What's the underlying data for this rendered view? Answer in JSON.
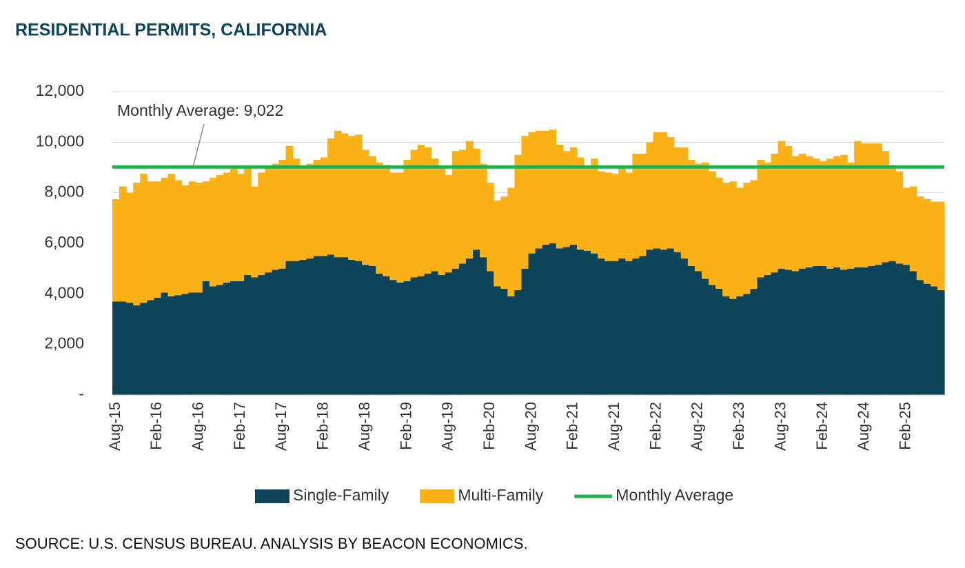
{
  "chart_data": {
    "type": "stacked_bar",
    "title": "RESIDENTIAL PERMITS, CALIFORNIA",
    "source": "SOURCE: U.S. CENSUS BUREAU. ANALYSIS BY BEACON ECONOMICS.",
    "annotation": "Monthly Average:  9,022",
    "categories": [
      "Aug-15",
      null,
      null,
      null,
      null,
      null,
      "Feb-16",
      null,
      null,
      null,
      null,
      null,
      "Aug-16",
      null,
      null,
      null,
      null,
      null,
      "Feb-17",
      null,
      null,
      null,
      null,
      null,
      "Aug-17",
      null,
      null,
      null,
      null,
      null,
      "Feb-18",
      null,
      null,
      null,
      null,
      null,
      "Aug-18",
      null,
      null,
      null,
      null,
      null,
      "Feb-19",
      null,
      null,
      null,
      null,
      null,
      "Aug-19",
      null,
      null,
      null,
      null,
      null,
      "Feb-20",
      null,
      null,
      null,
      null,
      null,
      "Aug-20",
      null,
      null,
      null,
      null,
      null,
      "Feb-21",
      null,
      null,
      null,
      null,
      null,
      "Aug-21",
      null,
      null,
      null,
      null,
      null,
      "Feb-22",
      null,
      null,
      null,
      null,
      null,
      "Aug-22",
      null,
      null,
      null,
      null,
      null,
      "Feb-23",
      null,
      null,
      null,
      null,
      null,
      "Aug-23",
      null,
      null,
      null,
      null,
      null,
      "Feb-24",
      null,
      null,
      null,
      null,
      null,
      "Aug-24",
      null,
      null,
      null,
      null,
      null,
      "Feb-25",
      null,
      null,
      null,
      null,
      null
    ],
    "series": [
      {
        "name": "Single-Family",
        "color": "#0d4459",
        "values": [
          3700,
          3700,
          3650,
          3550,
          3650,
          3750,
          3850,
          4050,
          3900,
          3950,
          4000,
          4050,
          4050,
          4500,
          4300,
          4350,
          4450,
          4500,
          4500,
          4750,
          4650,
          4750,
          4850,
          4950,
          5000,
          5300,
          5300,
          5350,
          5400,
          5500,
          5500,
          5550,
          5450,
          5450,
          5350,
          5300,
          5150,
          5100,
          4800,
          4700,
          4550,
          4450,
          4500,
          4650,
          4700,
          4800,
          4900,
          4750,
          4850,
          5000,
          5200,
          5400,
          5750,
          5450,
          4900,
          4300,
          4200,
          3900,
          4150,
          5000,
          5600,
          5800,
          5950,
          6000,
          5800,
          5850,
          5950,
          5750,
          5700,
          5600,
          5400,
          5300,
          5300,
          5400,
          5300,
          5400,
          5500,
          5750,
          5800,
          5750,
          5800,
          5650,
          5400,
          5100,
          4900,
          4600,
          4350,
          4200,
          3900,
          3800,
          3900,
          4000,
          4200,
          4650,
          4750,
          4850,
          5000,
          4950,
          4900,
          5000,
          5050,
          5100,
          5100,
          5000,
          5050,
          4950,
          5000,
          5050,
          5050,
          5100,
          5150,
          5250,
          5300,
          5200,
          5150,
          4900,
          4550,
          4400,
          4300,
          4150
        ]
      },
      {
        "name": "Multi-Family",
        "color": "#fbb217",
        "values": [
          4050,
          4550,
          4350,
          4850,
          5100,
          4700,
          4600,
          4550,
          4850,
          4550,
          4300,
          4400,
          4350,
          3950,
          4300,
          4350,
          4350,
          4500,
          4250,
          4250,
          3600,
          4050,
          4150,
          4200,
          4300,
          4550,
          4050,
          3700,
          3750,
          3800,
          3900,
          4600,
          5000,
          4900,
          4900,
          5000,
          4550,
          4350,
          4400,
          4400,
          4250,
          4350,
          4800,
          5050,
          5200,
          5000,
          4450,
          4300,
          3850,
          4650,
          4500,
          4650,
          4000,
          3700,
          3500,
          3400,
          3650,
          4300,
          5350,
          5250,
          4800,
          4650,
          4500,
          4500,
          4100,
          3800,
          3850,
          3650,
          3350,
          3750,
          3450,
          3500,
          3450,
          3600,
          3500,
          4150,
          4050,
          4250,
          4600,
          4650,
          4400,
          4150,
          4400,
          4200,
          4250,
          4600,
          4500,
          4400,
          4500,
          4650,
          4300,
          4400,
          4300,
          4650,
          4450,
          4700,
          5050,
          4900,
          4550,
          4550,
          4400,
          4250,
          4150,
          4350,
          4400,
          4550,
          4200,
          5000,
          4900,
          4850,
          4800,
          4400,
          3800,
          3650,
          3050,
          3350,
          3300,
          3350,
          3350,
          3500
        ]
      }
    ],
    "average": {
      "name": "Monthly Average",
      "color": "#22b14c",
      "value": 9022
    },
    "ylim": [
      0,
      12000
    ],
    "yticks": [
      {
        "value": 0,
        "label": "-"
      },
      {
        "value": 2000,
        "label": "2,000"
      },
      {
        "value": 4000,
        "label": "4,000"
      },
      {
        "value": 6000,
        "label": "6,000"
      },
      {
        "value": 8000,
        "label": "8,000"
      },
      {
        "value": 10000,
        "label": "10,000"
      },
      {
        "value": 12000,
        "label": "12,000"
      }
    ],
    "grid": true,
    "legend": "bottom"
  }
}
